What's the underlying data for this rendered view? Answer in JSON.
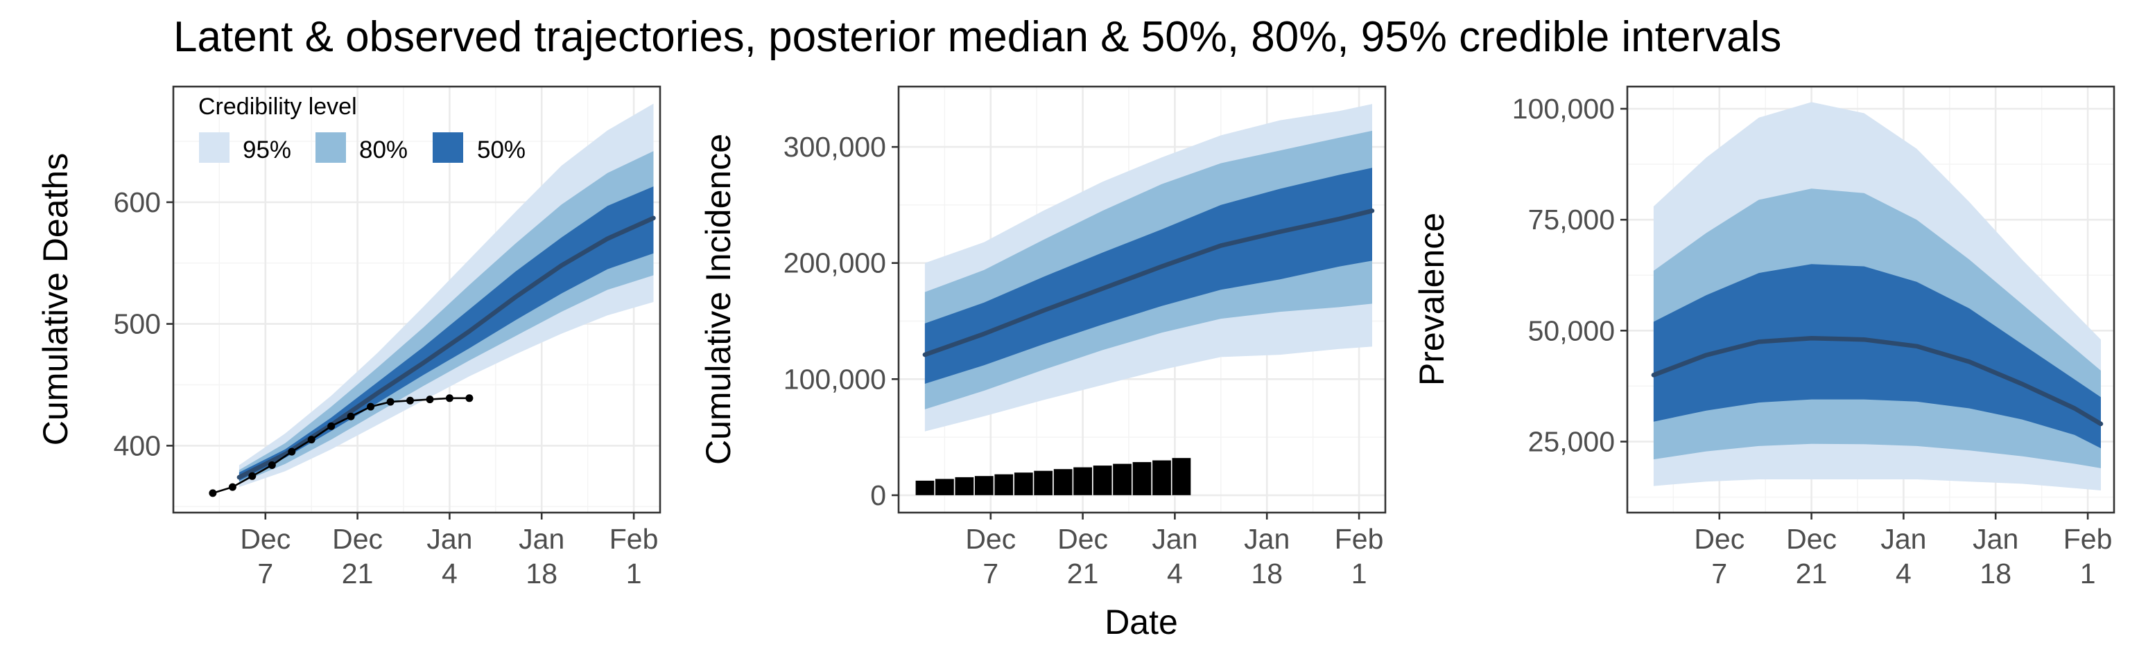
{
  "title": "Latent & observed trajectories, posterior median & 50%, 80%, 95% credible intervals",
  "shared_xlabel": "Date",
  "colors": {
    "ci95": "#d6e4f3",
    "ci80": "#91bcda",
    "ci50": "#2b6cb0",
    "median": "#2c4a6e",
    "observed": "#000000"
  },
  "legend": {
    "title": "Credibility level",
    "items": [
      {
        "label": "95%",
        "color": "#d6e4f3"
      },
      {
        "label": "80%",
        "color": "#91bcda"
      },
      {
        "label": "50%",
        "color": "#2b6cb0"
      }
    ]
  },
  "chart_data": [
    {
      "type": "area",
      "ylabel": "Cumulative Deaths",
      "xlabel": "",
      "x_ticks": [
        {
          "date": "2020-12-07",
          "label": [
            "Dec",
            "7"
          ]
        },
        {
          "date": "2020-12-21",
          "label": [
            "Dec",
            "21"
          ]
        },
        {
          "date": "2021-01-04",
          "label": [
            "Jan",
            "4"
          ]
        },
        {
          "date": "2021-01-18",
          "label": [
            "Jan",
            "18"
          ]
        },
        {
          "date": "2021-02-01",
          "label": [
            "Feb",
            "1"
          ]
        }
      ],
      "xlim": [
        "2020-11-23",
        "2021-02-05"
      ],
      "ylim": [
        345,
        695
      ],
      "y_ticks": [
        400,
        500,
        600
      ],
      "y_tick_labels": [
        "400",
        "500",
        "600"
      ],
      "legend_position": "top-left inside",
      "band_dates": [
        "2020-12-03",
        "2020-12-10",
        "2020-12-17",
        "2020-12-24",
        "2020-12-31",
        "2021-01-07",
        "2021-01-14",
        "2021-01-21",
        "2021-01-28",
        "2021-02-04"
      ],
      "ci95": {
        "lower": [
          366,
          379,
          397,
          417,
          437,
          457,
          475,
          492,
          507,
          518
        ],
        "upper": [
          384,
          410,
          441,
          476,
          514,
          553,
          592,
          630,
          659,
          681
        ]
      },
      "ci80": {
        "lower": [
          369,
          385,
          405,
          427,
          449,
          470,
          490,
          510,
          528,
          540
        ],
        "upper": [
          380,
          402,
          432,
          464,
          497,
          532,
          566,
          598,
          624,
          642
        ]
      },
      "ci50": {
        "lower": [
          371,
          390,
          412,
          435,
          458,
          480,
          503,
          525,
          545,
          558
        ],
        "upper": [
          378,
          397,
          423,
          452,
          481,
          512,
          543,
          571,
          597,
          613
        ]
      },
      "median_line": [
        374,
        393,
        417,
        443,
        468,
        494,
        522,
        548,
        570,
        587
      ],
      "observed": {
        "style": "line+points",
        "dates": [
          "2020-11-29",
          "2020-12-02",
          "2020-12-05",
          "2020-12-08",
          "2020-12-11",
          "2020-12-14",
          "2020-12-17",
          "2020-12-20",
          "2020-12-23",
          "2020-12-26",
          "2020-12-29",
          "2021-01-01",
          "2021-01-04",
          "2021-01-07"
        ],
        "values": [
          361,
          366,
          375,
          384,
          395,
          405,
          416,
          424,
          432,
          436,
          437,
          438,
          439,
          439
        ]
      }
    },
    {
      "type": "area",
      "ylabel": "Cumulative Incidence",
      "xlabel": "Date",
      "x_ticks": [
        {
          "date": "2020-12-07",
          "label": [
            "Dec",
            "7"
          ]
        },
        {
          "date": "2020-12-21",
          "label": [
            "Dec",
            "21"
          ]
        },
        {
          "date": "2021-01-04",
          "label": [
            "Jan",
            "4"
          ]
        },
        {
          "date": "2021-01-18",
          "label": [
            "Jan",
            "18"
          ]
        },
        {
          "date": "2021-02-01",
          "label": [
            "Feb",
            "1"
          ]
        }
      ],
      "xlim": [
        "2020-11-23",
        "2021-02-05"
      ],
      "ylim": [
        -15000,
        352000
      ],
      "y_ticks": [
        0,
        100000,
        200000,
        300000
      ],
      "y_tick_labels": [
        "0",
        "100,000",
        "200,000",
        "300,000"
      ],
      "band_dates": [
        "2020-11-27",
        "2020-12-06",
        "2020-12-15",
        "2020-12-24",
        "2021-01-02",
        "2021-01-11",
        "2021-01-20",
        "2021-01-29",
        "2021-02-03"
      ],
      "ci95": {
        "lower": [
          55000,
          68000,
          82000,
          95000,
          108000,
          119000,
          121000,
          126000,
          128000
        ],
        "upper": [
          200000,
          218000,
          245000,
          270000,
          291000,
          310000,
          323000,
          331000,
          337000
        ]
      },
      "ci80": {
        "lower": [
          74000,
          90000,
          108000,
          125000,
          140000,
          152000,
          158000,
          162000,
          165000
        ],
        "upper": [
          175000,
          194000,
          220000,
          245000,
          268000,
          286000,
          297000,
          308000,
          314000
        ]
      },
      "ci50": {
        "lower": [
          96000,
          112000,
          130000,
          147000,
          163000,
          177000,
          186000,
          197000,
          202000
        ],
        "upper": [
          148000,
          166000,
          188000,
          209000,
          229000,
          250000,
          264000,
          276000,
          282000
        ]
      },
      "median_line": [
        121000,
        139000,
        159000,
        178000,
        197000,
        215000,
        227000,
        238000,
        245000
      ],
      "observed": {
        "style": "bars",
        "dates": [
          "2020-11-27",
          "2020-11-30",
          "2020-12-03",
          "2020-12-06",
          "2020-12-09",
          "2020-12-12",
          "2020-12-15",
          "2020-12-18",
          "2020-12-21",
          "2020-12-24",
          "2020-12-27",
          "2020-12-30",
          "2021-01-02",
          "2021-01-05"
        ],
        "values": [
          12500,
          14000,
          15500,
          16500,
          18000,
          19500,
          21000,
          22500,
          24000,
          25500,
          27000,
          28500,
          30000,
          32000
        ]
      }
    },
    {
      "type": "area",
      "ylabel": "Prevalence",
      "xlabel": "",
      "x_ticks": [
        {
          "date": "2020-12-07",
          "label": [
            "Dec",
            "7"
          ]
        },
        {
          "date": "2020-12-21",
          "label": [
            "Dec",
            "21"
          ]
        },
        {
          "date": "2021-01-04",
          "label": [
            "Jan",
            "4"
          ]
        },
        {
          "date": "2021-01-18",
          "label": [
            "Jan",
            "18"
          ]
        },
        {
          "date": "2021-02-01",
          "label": [
            "Feb",
            "1"
          ]
        }
      ],
      "xlim": [
        "2020-11-23",
        "2021-02-05"
      ],
      "ylim": [
        9000,
        105000
      ],
      "y_ticks": [
        25000,
        50000,
        75000,
        100000
      ],
      "y_tick_labels": [
        "25,000",
        "50,000",
        "75,000",
        "100,000"
      ],
      "band_dates": [
        "2020-11-27",
        "2020-12-05",
        "2020-12-13",
        "2020-12-21",
        "2020-12-29",
        "2021-01-06",
        "2021-01-14",
        "2021-01-22",
        "2021-01-30",
        "2021-02-03"
      ],
      "ci95": {
        "lower": [
          15000,
          16000,
          16500,
          16500,
          16500,
          16500,
          16000,
          15500,
          14500,
          14000
        ],
        "upper": [
          78000,
          89000,
          98000,
          101500,
          99000,
          91000,
          79000,
          66000,
          54000,
          48000
        ]
      },
      "ci80": {
        "lower": [
          21000,
          22800,
          24000,
          24500,
          24400,
          24000,
          23000,
          21700,
          20000,
          19000
        ],
        "upper": [
          63500,
          72000,
          79500,
          82000,
          81000,
          75000,
          66000,
          56000,
          46000,
          41000
        ]
      },
      "ci50": {
        "lower": [
          29500,
          32000,
          33800,
          34500,
          34500,
          34000,
          32500,
          30000,
          26500,
          23500
        ],
        "upper": [
          52000,
          58000,
          63000,
          65000,
          64500,
          61000,
          55000,
          47000,
          39000,
          35000
        ]
      },
      "median_line": [
        40000,
        44500,
        47500,
        48300,
        48000,
        46500,
        43000,
        38000,
        32500,
        29000
      ]
    }
  ]
}
